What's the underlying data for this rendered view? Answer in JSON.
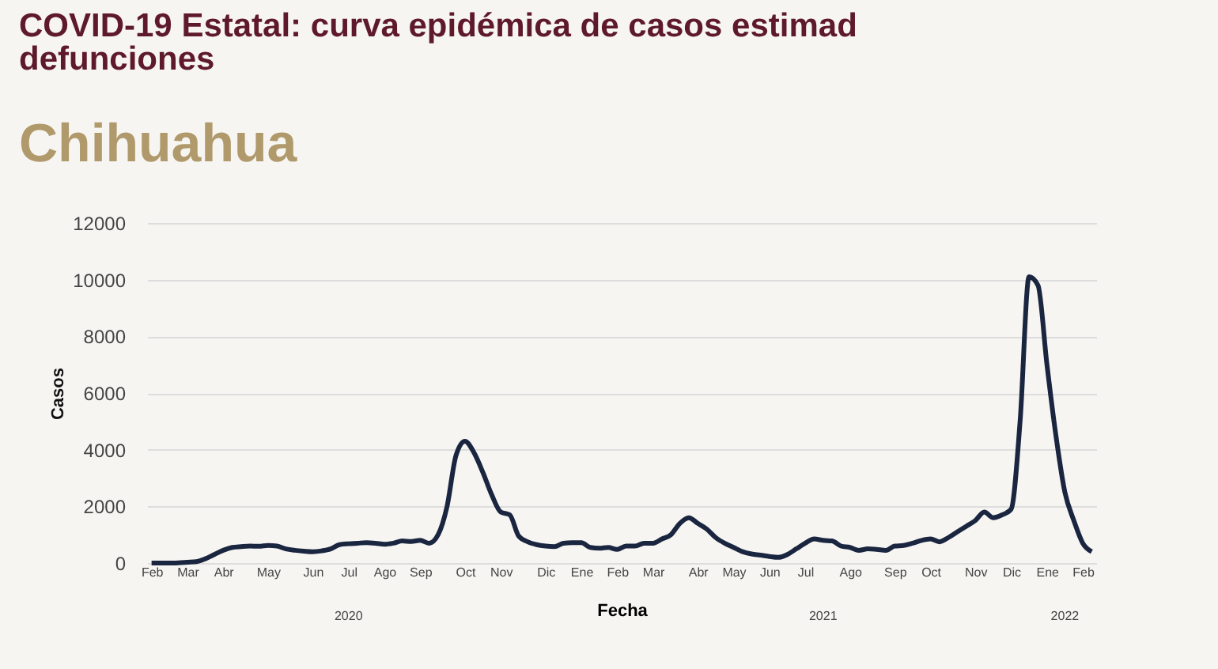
{
  "chart_data": {
    "type": "line",
    "title": "COVID-19 Estatal: curva epidémica de casos estimad\ndefunciones",
    "subtitle": "Chihuahua",
    "xlabel": "Fecha",
    "ylabel": "Casos",
    "categories": [
      "Feb",
      null,
      null,
      null,
      "Mar",
      null,
      null,
      null,
      "Abr",
      null,
      null,
      null,
      null,
      "May",
      null,
      null,
      null,
      null,
      "Jun",
      null,
      null,
      null,
      "Jul",
      null,
      null,
      null,
      "Ago",
      null,
      null,
      null,
      "Sep",
      null,
      null,
      null,
      null,
      "Oct",
      null,
      null,
      null,
      "Nov",
      null,
      null,
      null,
      null,
      "Dic",
      null,
      null,
      null,
      "Ene",
      null,
      null,
      null,
      "Feb",
      null,
      null,
      null,
      "Mar",
      null,
      null,
      null,
      null,
      "Abr",
      null,
      null,
      null,
      "May",
      null,
      null,
      null,
      "Jun",
      null,
      null,
      null,
      "Jul",
      null,
      null,
      null,
      null,
      "Ago",
      null,
      null,
      null,
      null,
      "Sep",
      null,
      null,
      null,
      "Oct",
      null,
      null,
      null,
      null,
      "Nov",
      null,
      null,
      null,
      "Dic",
      null,
      null,
      null,
      "Ene",
      null,
      null,
      null,
      "Feb",
      null
    ],
    "series": [
      {
        "color": "#1a2540",
        "values": [
          0,
          0,
          0,
          10,
          30,
          50,
          150,
          300,
          450,
          550,
          580,
          600,
          590,
          620,
          600,
          500,
          450,
          420,
          400,
          430,
          500,
          650,
          680,
          700,
          720,
          700,
          660,
          700,
          780,
          760,
          800,
          700,
          1000,
          2000,
          3800,
          4300,
          3900,
          3200,
          2400,
          1800,
          1700,
          950,
          750,
          650,
          600,
          580,
          700,
          720,
          720,
          550,
          520,
          550,
          480,
          600,
          600,
          700,
          700,
          850,
          1000,
          1400,
          1600,
          1400,
          1200,
          900,
          700,
          550,
          400,
          320,
          280,
          230,
          200,
          300,
          500,
          700,
          850,
          800,
          780,
          600,
          550,
          450,
          500,
          480,
          450,
          600,
          620,
          700,
          800,
          850,
          750,
          900,
          1100,
          1300,
          1500,
          1800,
          1600,
          1700,
          1900,
          5000,
          10100,
          9800,
          7000,
          4500,
          2500,
          1500,
          700,
          400
        ]
      }
    ],
    "ylim": [
      0,
      12000
    ],
    "yticks": [
      0,
      2000,
      4000,
      6000,
      8000,
      10000,
      12000
    ],
    "grid": "y",
    "annotations": [
      "2020",
      "2021",
      "2022"
    ]
  }
}
